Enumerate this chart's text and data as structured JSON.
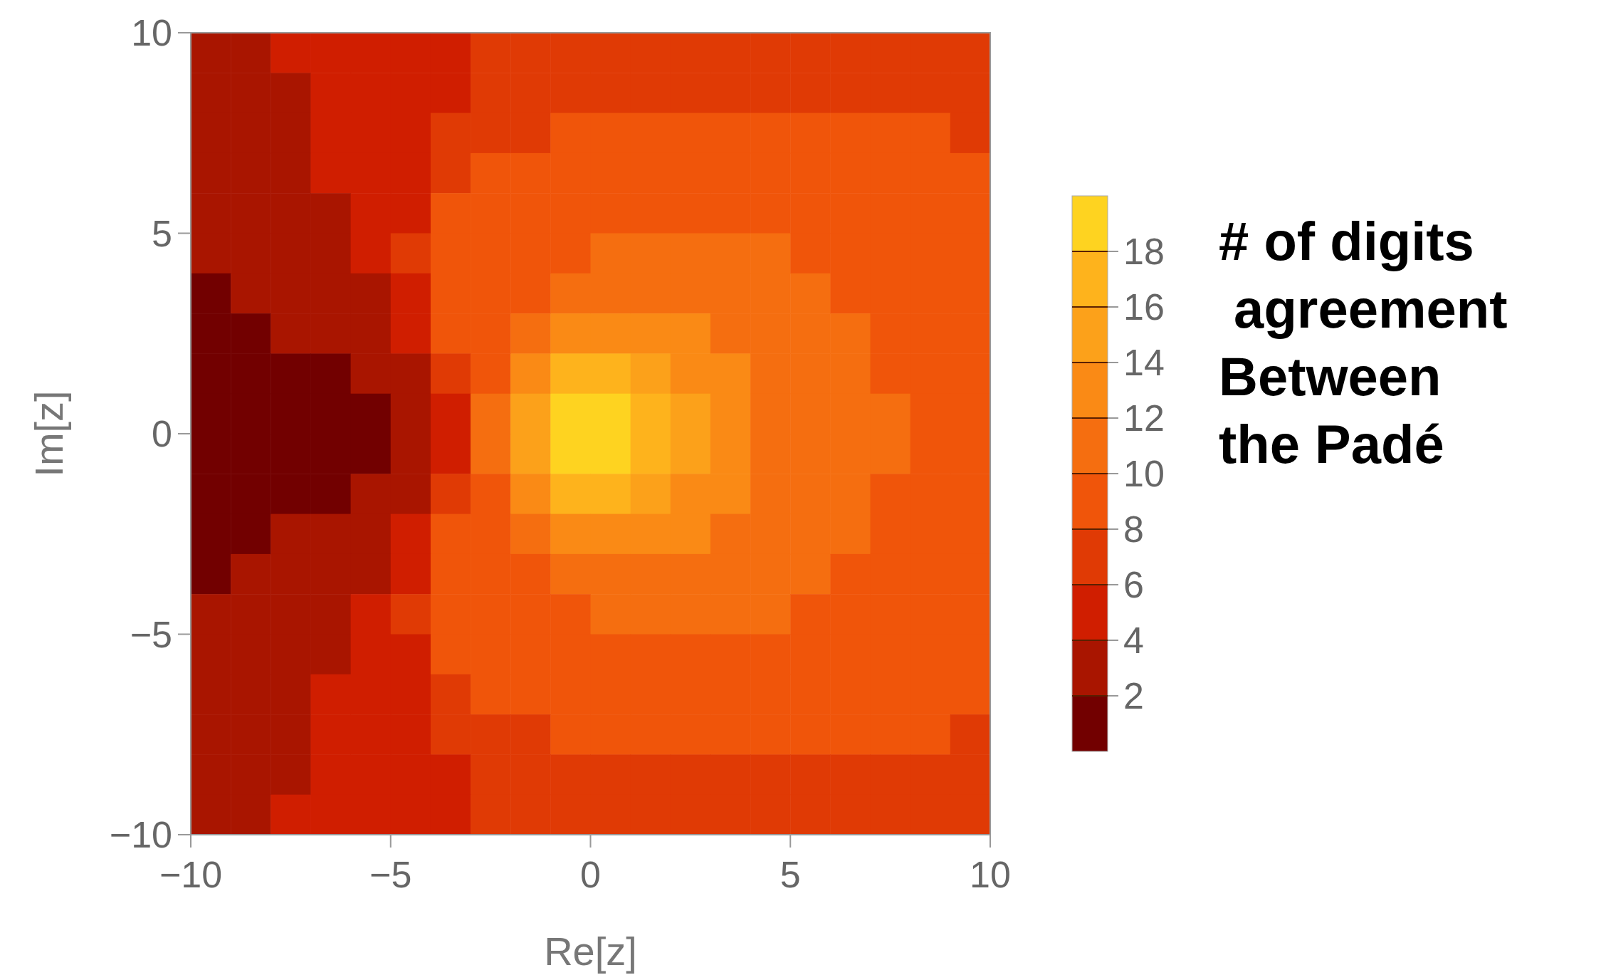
{
  "chart_data": {
    "type": "heatmap",
    "xlabel": "Re[z]",
    "ylabel": "Im[z]",
    "clabel": "# of digits\n agreement\nBetween\nthe Padé",
    "x": [
      -9.5,
      -8.5,
      -7.5,
      -6.5,
      -5.5,
      -4.5,
      -3.5,
      -2.5,
      -1.5,
      -0.5,
      0.5,
      1.5,
      2.5,
      3.5,
      4.5,
      5.5,
      6.5,
      7.5,
      8.5,
      9.5
    ],
    "y": [
      9.5,
      8.5,
      7.5,
      6.5,
      5.5,
      4.5,
      3.5,
      2.5,
      1.5,
      0.5,
      -0.5,
      -1.5,
      -2.5,
      -3.5,
      -4.5,
      -5.5,
      -6.5,
      -7.5,
      -8.5,
      -9.5
    ],
    "xlim": [
      -10,
      10
    ],
    "ylim": [
      -10,
      10
    ],
    "xticks": [
      {
        "value": -10,
        "label": "−10"
      },
      {
        "value": -5,
        "label": "−5"
      },
      0,
      5,
      10
    ],
    "yticks": [
      {
        "value": -10,
        "label": "−10"
      },
      {
        "value": -5,
        "label": "−5"
      },
      0,
      5,
      10
    ],
    "clim": [
      0,
      20
    ],
    "cticks": [
      2,
      4,
      6,
      8,
      10,
      12,
      14,
      16,
      18
    ],
    "cells": [
      [
        3,
        3,
        5,
        5,
        5,
        5,
        5,
        7,
        7,
        7,
        7,
        7,
        7,
        7,
        7,
        7,
        7,
        7,
        7,
        7
      ],
      [
        3,
        3,
        3,
        5,
        5,
        5,
        5,
        7,
        7,
        7,
        7,
        7,
        7,
        7,
        7,
        7,
        7,
        7,
        7,
        7
      ],
      [
        3,
        3,
        3,
        5,
        5,
        5,
        7,
        7,
        7,
        9,
        9,
        9,
        9,
        9,
        9,
        9,
        9,
        9,
        9,
        7
      ],
      [
        3,
        3,
        3,
        5,
        5,
        5,
        7,
        9,
        9,
        9,
        9,
        9,
        9,
        9,
        9,
        9,
        9,
        9,
        9,
        9
      ],
      [
        3,
        3,
        3,
        3,
        5,
        5,
        9,
        9,
        9,
        9,
        9,
        9,
        9,
        9,
        9,
        9,
        9,
        9,
        9,
        9
      ],
      [
        3,
        3,
        3,
        3,
        5,
        7,
        9,
        9,
        9,
        9,
        11,
        11,
        11,
        11,
        11,
        9,
        9,
        9,
        9,
        9
      ],
      [
        1,
        3,
        3,
        3,
        3,
        5,
        9,
        9,
        9,
        11,
        11,
        11,
        11,
        11,
        11,
        11,
        9,
        9,
        9,
        9
      ],
      [
        1,
        1,
        3,
        3,
        3,
        5,
        9,
        9,
        11,
        13,
        13,
        13,
        13,
        11,
        11,
        11,
        11,
        9,
        9,
        9
      ],
      [
        1,
        1,
        1,
        1,
        3,
        3,
        7,
        9,
        13,
        17,
        17,
        15,
        13,
        13,
        11,
        11,
        11,
        9,
        9,
        9
      ],
      [
        1,
        1,
        1,
        1,
        1,
        3,
        5,
        11,
        15,
        19,
        19,
        17,
        15,
        13,
        11,
        11,
        11,
        11,
        9,
        9
      ],
      [
        1,
        1,
        1,
        1,
        1,
        3,
        5,
        11,
        15,
        19,
        19,
        17,
        15,
        13,
        11,
        11,
        11,
        11,
        9,
        9
      ],
      [
        1,
        1,
        1,
        1,
        3,
        3,
        7,
        9,
        13,
        17,
        17,
        15,
        13,
        13,
        11,
        11,
        11,
        9,
        9,
        9
      ],
      [
        1,
        1,
        3,
        3,
        3,
        5,
        9,
        9,
        11,
        13,
        13,
        13,
        13,
        11,
        11,
        11,
        11,
        9,
        9,
        9
      ],
      [
        1,
        3,
        3,
        3,
        3,
        5,
        9,
        9,
        9,
        11,
        11,
        11,
        11,
        11,
        11,
        11,
        9,
        9,
        9,
        9
      ],
      [
        3,
        3,
        3,
        3,
        5,
        7,
        9,
        9,
        9,
        9,
        11,
        11,
        11,
        11,
        11,
        9,
        9,
        9,
        9,
        9
      ],
      [
        3,
        3,
        3,
        3,
        5,
        5,
        9,
        9,
        9,
        9,
        9,
        9,
        9,
        9,
        9,
        9,
        9,
        9,
        9,
        9
      ],
      [
        3,
        3,
        3,
        5,
        5,
        5,
        7,
        9,
        9,
        9,
        9,
        9,
        9,
        9,
        9,
        9,
        9,
        9,
        9,
        9
      ],
      [
        3,
        3,
        3,
        5,
        5,
        5,
        7,
        7,
        7,
        9,
        9,
        9,
        9,
        9,
        9,
        9,
        9,
        9,
        9,
        7
      ],
      [
        3,
        3,
        3,
        5,
        5,
        5,
        5,
        7,
        7,
        7,
        7,
        7,
        7,
        7,
        7,
        7,
        7,
        7,
        7,
        7
      ],
      [
        3,
        3,
        5,
        5,
        5,
        5,
        5,
        7,
        7,
        7,
        7,
        7,
        7,
        7,
        7,
        7,
        7,
        7,
        7,
        7
      ]
    ]
  }
}
